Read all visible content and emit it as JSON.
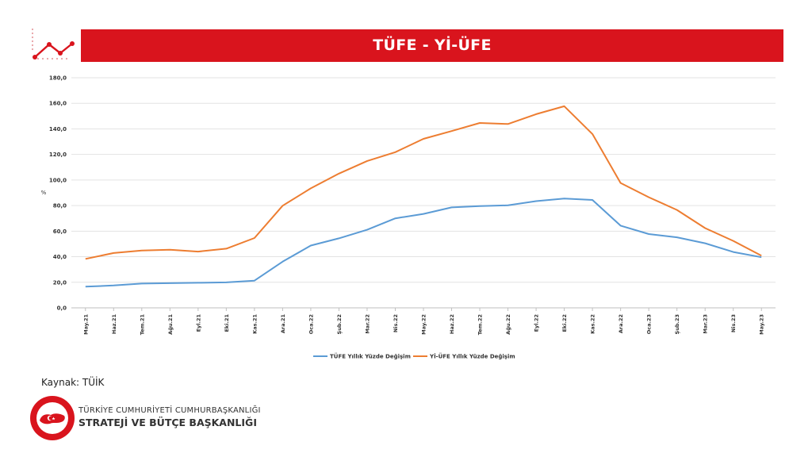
{
  "header": {
    "title": "TÜFE - Yİ-ÜFE"
  },
  "source": "Kaynak: TÜİK",
  "org": {
    "line1": "TÜRKİYE CUMHURİYETİ CUMHURBAŞKANLIĞI",
    "line2": "STRATEJİ VE BÜTÇE BAŞKANLIĞI"
  },
  "chart_data": {
    "type": "line",
    "ylabel": "%",
    "ylim": [
      0,
      180
    ],
    "yticks": [
      "0,0",
      "20,0",
      "40,0",
      "60,0",
      "80,0",
      "100,0",
      "120,0",
      "140,0",
      "160,0",
      "180,0"
    ],
    "categories": [
      "May.21",
      "Haz.21",
      "Tem.21",
      "Ağu.21",
      "Eyl.21",
      "Eki.21",
      "Kas.21",
      "Ara.21",
      "Oca.22",
      "Şub.22",
      "Mar.22",
      "Nis.22",
      "May.22",
      "Haz.22",
      "Tem.22",
      "Ağu.22",
      "Eyl.22",
      "Eki.22",
      "Kas.22",
      "Ara.22",
      "Oca.23",
      "Şub.23",
      "Mar.23",
      "Nis.23",
      "May.23"
    ],
    "grid": true,
    "legend_position": "bottom",
    "series": [
      {
        "name": "TÜFE Yıllık Yüzde Değişim",
        "color": "#5b9bd5",
        "values": [
          16.6,
          17.5,
          19.0,
          19.3,
          19.6,
          19.9,
          21.3,
          36.1,
          48.7,
          54.4,
          61.1,
          70.0,
          73.5,
          78.6,
          79.6,
          80.2,
          83.5,
          85.5,
          84.4,
          64.3,
          57.7,
          55.2,
          50.5,
          43.7,
          39.6
        ]
      },
      {
        "name": "Yİ-ÜFE Yıllık Yüzde Değişim",
        "color": "#ed7d31",
        "values": [
          38.3,
          42.9,
          44.9,
          45.5,
          44.0,
          46.3,
          54.6,
          79.9,
          93.5,
          105.0,
          114.9,
          121.8,
          132.2,
          138.3,
          144.6,
          143.8,
          151.5,
          157.7,
          136.0,
          97.7,
          86.5,
          76.6,
          62.4,
          52.4,
          40.8
        ]
      }
    ]
  }
}
